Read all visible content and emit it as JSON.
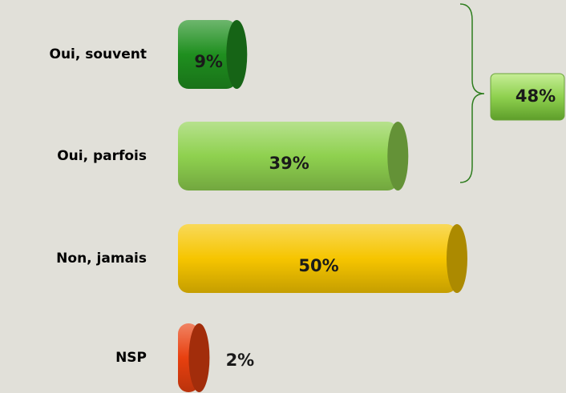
{
  "chart_data": {
    "type": "bar",
    "categories": [
      "Oui, souvent",
      "Oui, parfois",
      "Non, jamais",
      "NSP"
    ],
    "values": [
      9,
      39,
      50,
      2
    ],
    "value_labels": [
      "9%",
      "39%",
      "50%",
      "2%"
    ],
    "colors": [
      "#1f8f1f",
      "#8fd14f",
      "#f6c500",
      "#e8400f"
    ],
    "bracket": {
      "value": 48,
      "label": "48%"
    }
  }
}
